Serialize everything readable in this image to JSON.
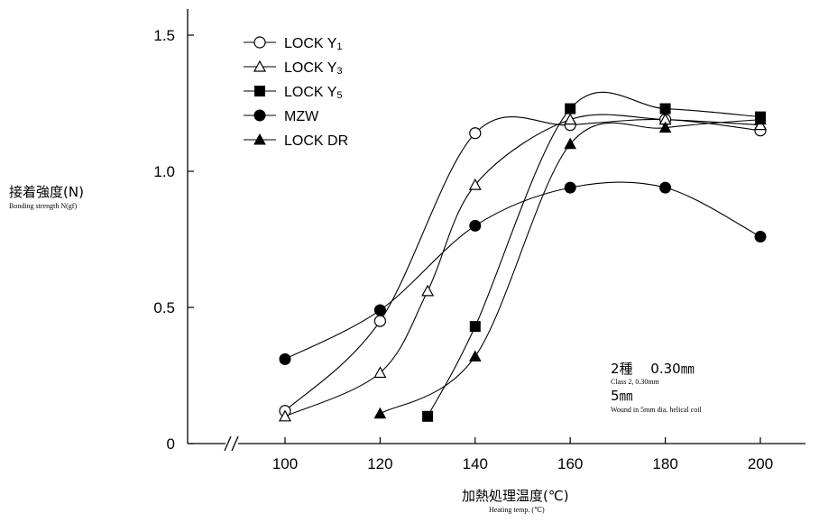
{
  "chart_data": {
    "type": "line",
    "ylabel": "接着強度(N)",
    "ylabel_en": "Bonding strength  N(gf)",
    "xlabel": "加熱処理温度(℃)",
    "xlabel_en": "Heating temp. (℃)",
    "x_ticks": [
      "100",
      "120",
      "140",
      "160",
      "180",
      "200"
    ],
    "y_ticks": [
      "0",
      "0.5",
      "1.0",
      "1.5"
    ],
    "xlim": [
      80,
      210
    ],
    "ylim": [
      0,
      1.5
    ],
    "axis_break": "//",
    "legend_position": "top-left",
    "annotation": {
      "line1": "2種　 0.30㎜",
      "line1_en": "Class 2,  0.30mm",
      "line2": "5㎜",
      "line2_en": "Wound in 5mm dia. helical coil"
    },
    "series": [
      {
        "name": "LOCK Y",
        "sub": "1",
        "marker": "circle-open",
        "x": [
          100,
          120,
          140,
          160,
          180,
          200
        ],
        "y": [
          0.12,
          0.45,
          1.14,
          1.17,
          1.19,
          1.15
        ]
      },
      {
        "name": "LOCK Y",
        "sub": "3",
        "marker": "triangle-open",
        "x": [
          100,
          120,
          130,
          140,
          160,
          180,
          200
        ],
        "y": [
          0.1,
          0.26,
          0.56,
          0.95,
          1.19,
          1.19,
          1.17
        ]
      },
      {
        "name": "LOCK Y",
        "sub": "5",
        "marker": "square-filled",
        "x": [
          130,
          140,
          160,
          180,
          200
        ],
        "y": [
          0.1,
          0.43,
          1.23,
          1.23,
          1.2
        ]
      },
      {
        "name": "MZW",
        "sub": "",
        "marker": "circle-filled",
        "x": [
          100,
          120,
          140,
          160,
          180,
          200
        ],
        "y": [
          0.31,
          0.49,
          0.8,
          0.94,
          0.94,
          0.76
        ]
      },
      {
        "name": "LOCK DR",
        "sub": "",
        "marker": "triangle-filled",
        "x": [
          120,
          140,
          160,
          180,
          200
        ],
        "y": [
          0.11,
          0.32,
          1.1,
          1.16,
          1.19
        ]
      }
    ]
  }
}
